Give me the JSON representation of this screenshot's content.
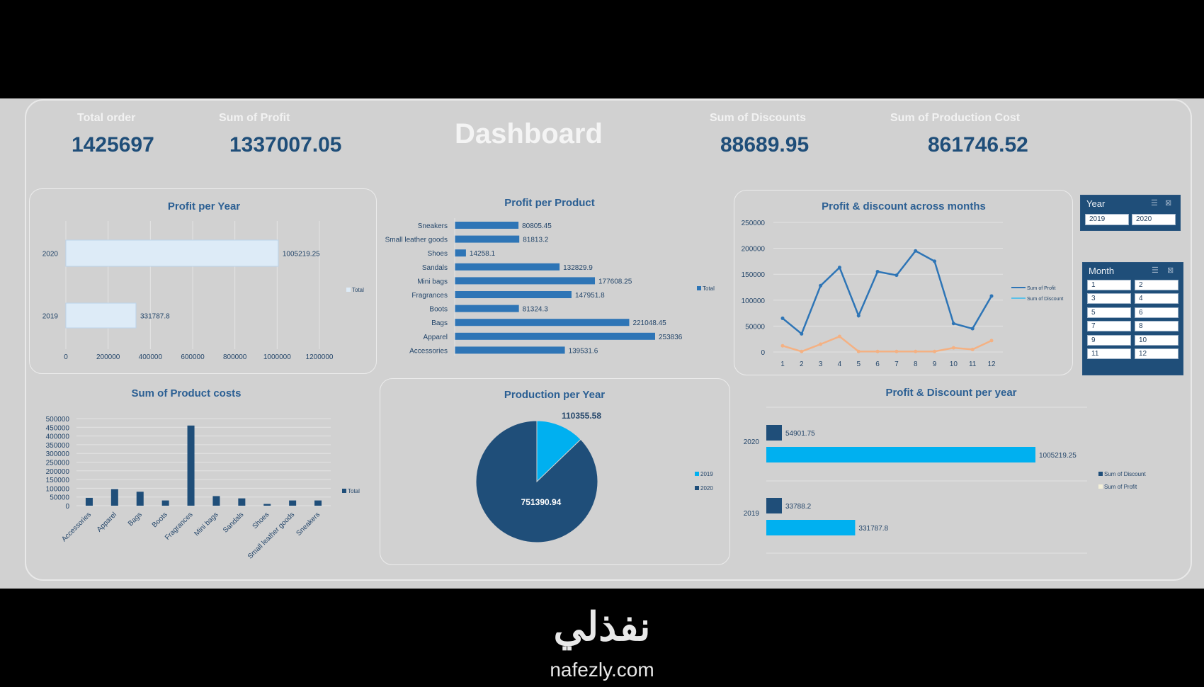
{
  "header": {
    "title": "Dashboard",
    "kpis": [
      {
        "label": "Total order",
        "value": "1425697"
      },
      {
        "label": "Sum of Profit",
        "value": "1337007.05"
      },
      {
        "label": "Sum of Discounts",
        "value": "88689.95"
      },
      {
        "label": "Sum of Production Cost",
        "value": "861746.52"
      }
    ]
  },
  "slicers": {
    "year": {
      "header": "Year",
      "items": [
        "2019",
        "2020"
      ]
    },
    "month": {
      "header": "Month",
      "items": [
        "1",
        "2",
        "3",
        "4",
        "5",
        "6",
        "7",
        "8",
        "9",
        "10",
        "11",
        "12"
      ]
    }
  },
  "watermark": {
    "arabic": "نفذلي",
    "latin": "nafezly.com"
  },
  "colors": {
    "dark_blue": "#1f4e79",
    "mid_blue": "#2e75b6",
    "cyan": "#00b0f0",
    "light_bar": "#ddebf7",
    "orange": "#f4b183"
  },
  "chart_data": [
    {
      "id": "profit_per_year",
      "type": "bar",
      "orientation": "horizontal",
      "title": "Profit per Year",
      "categories": [
        "2020",
        "2019"
      ],
      "series": [
        {
          "name": "Total",
          "values": [
            1005219.25,
            331787.8
          ]
        }
      ],
      "value_labels": [
        "1005219.25",
        "331787.8"
      ],
      "xlim": [
        0,
        1200000
      ],
      "xticks": [
        "0",
        "200000",
        "400000",
        "600000",
        "800000",
        "1000000",
        "1200000"
      ],
      "legend": "right",
      "grid": true
    },
    {
      "id": "profit_per_product",
      "type": "bar",
      "orientation": "horizontal",
      "title": "Profit per Product",
      "categories": [
        "Sneakers",
        "Small leather goods",
        "Shoes",
        "Sandals",
        "Mini bags",
        "Fragrances",
        "Boots",
        "Bags",
        "Apparel",
        "Accessories"
      ],
      "series": [
        {
          "name": "Total",
          "values": [
            80805.45,
            81813.2,
            14258.1,
            132829.9,
            177608.25,
            147951.8,
            81324.3,
            221048.45,
            253836,
            139531.6
          ]
        }
      ],
      "value_labels": [
        "80805.45",
        "81813.2",
        "14258.1",
        "132829.9",
        "177608.25",
        "147951.8",
        "81324.3",
        "221048.45",
        "253836",
        "139531.6"
      ],
      "legend": "right",
      "grid": false
    },
    {
      "id": "profit_discount_months",
      "type": "line",
      "title": "Profit & discount across months",
      "x": [
        1,
        2,
        3,
        4,
        5,
        6,
        7,
        8,
        9,
        10,
        11,
        12
      ],
      "series": [
        {
          "name": "Sum of Profit",
          "values": [
            65000,
            35000,
            128000,
            163000,
            70000,
            155000,
            148000,
            195000,
            175000,
            55000,
            45000,
            108000
          ]
        },
        {
          "name": "Sum of Discount",
          "values": [
            12000,
            1000,
            15000,
            30000,
            1000,
            1000,
            1000,
            1000,
            1000,
            8000,
            5000,
            22000
          ]
        }
      ],
      "ylim": [
        0,
        250000
      ],
      "yticks": [
        "0",
        "50000",
        "100000",
        "150000",
        "200000",
        "250000"
      ],
      "legend": "right",
      "grid": true
    },
    {
      "id": "sum_product_costs",
      "type": "bar",
      "title": "Sum of Product costs",
      "categories": [
        "Accessories",
        "Apparel",
        "Bags",
        "Boots",
        "Fragrances",
        "Mini bags",
        "Sandals",
        "Shoes",
        "Small leather goods",
        "Sneakers"
      ],
      "series": [
        {
          "name": "Total",
          "values": [
            45000,
            95000,
            80000,
            30000,
            460000,
            55000,
            42000,
            10000,
            30000,
            30000
          ]
        }
      ],
      "ylim": [
        0,
        500000
      ],
      "yticks": [
        "0",
        "50000",
        "100000",
        "150000",
        "200000",
        "250000",
        "300000",
        "350000",
        "400000",
        "450000",
        "500000"
      ],
      "legend": "right",
      "grid": true
    },
    {
      "id": "production_per_year",
      "type": "pie",
      "title": "Production per Year",
      "categories": [
        "2019",
        "2020"
      ],
      "values": [
        110355.58,
        751390.94
      ],
      "value_labels": [
        "110355.58",
        "751390.94"
      ],
      "legend": "right"
    },
    {
      "id": "profit_discount_per_year",
      "type": "bar",
      "orientation": "horizontal",
      "title": "Profit & Discount per year",
      "categories": [
        "2020",
        "2019"
      ],
      "series": [
        {
          "name": "Sum of Discount",
          "values": [
            54901.75,
            33788.2
          ]
        },
        {
          "name": "Sum of Profit",
          "values": [
            1005219.25,
            331787.8
          ]
        }
      ],
      "value_labels": [
        [
          "54901.75",
          "33788.2"
        ],
        [
          "1005219.25",
          "331787.8"
        ]
      ],
      "legend": "right",
      "grid": true
    }
  ]
}
